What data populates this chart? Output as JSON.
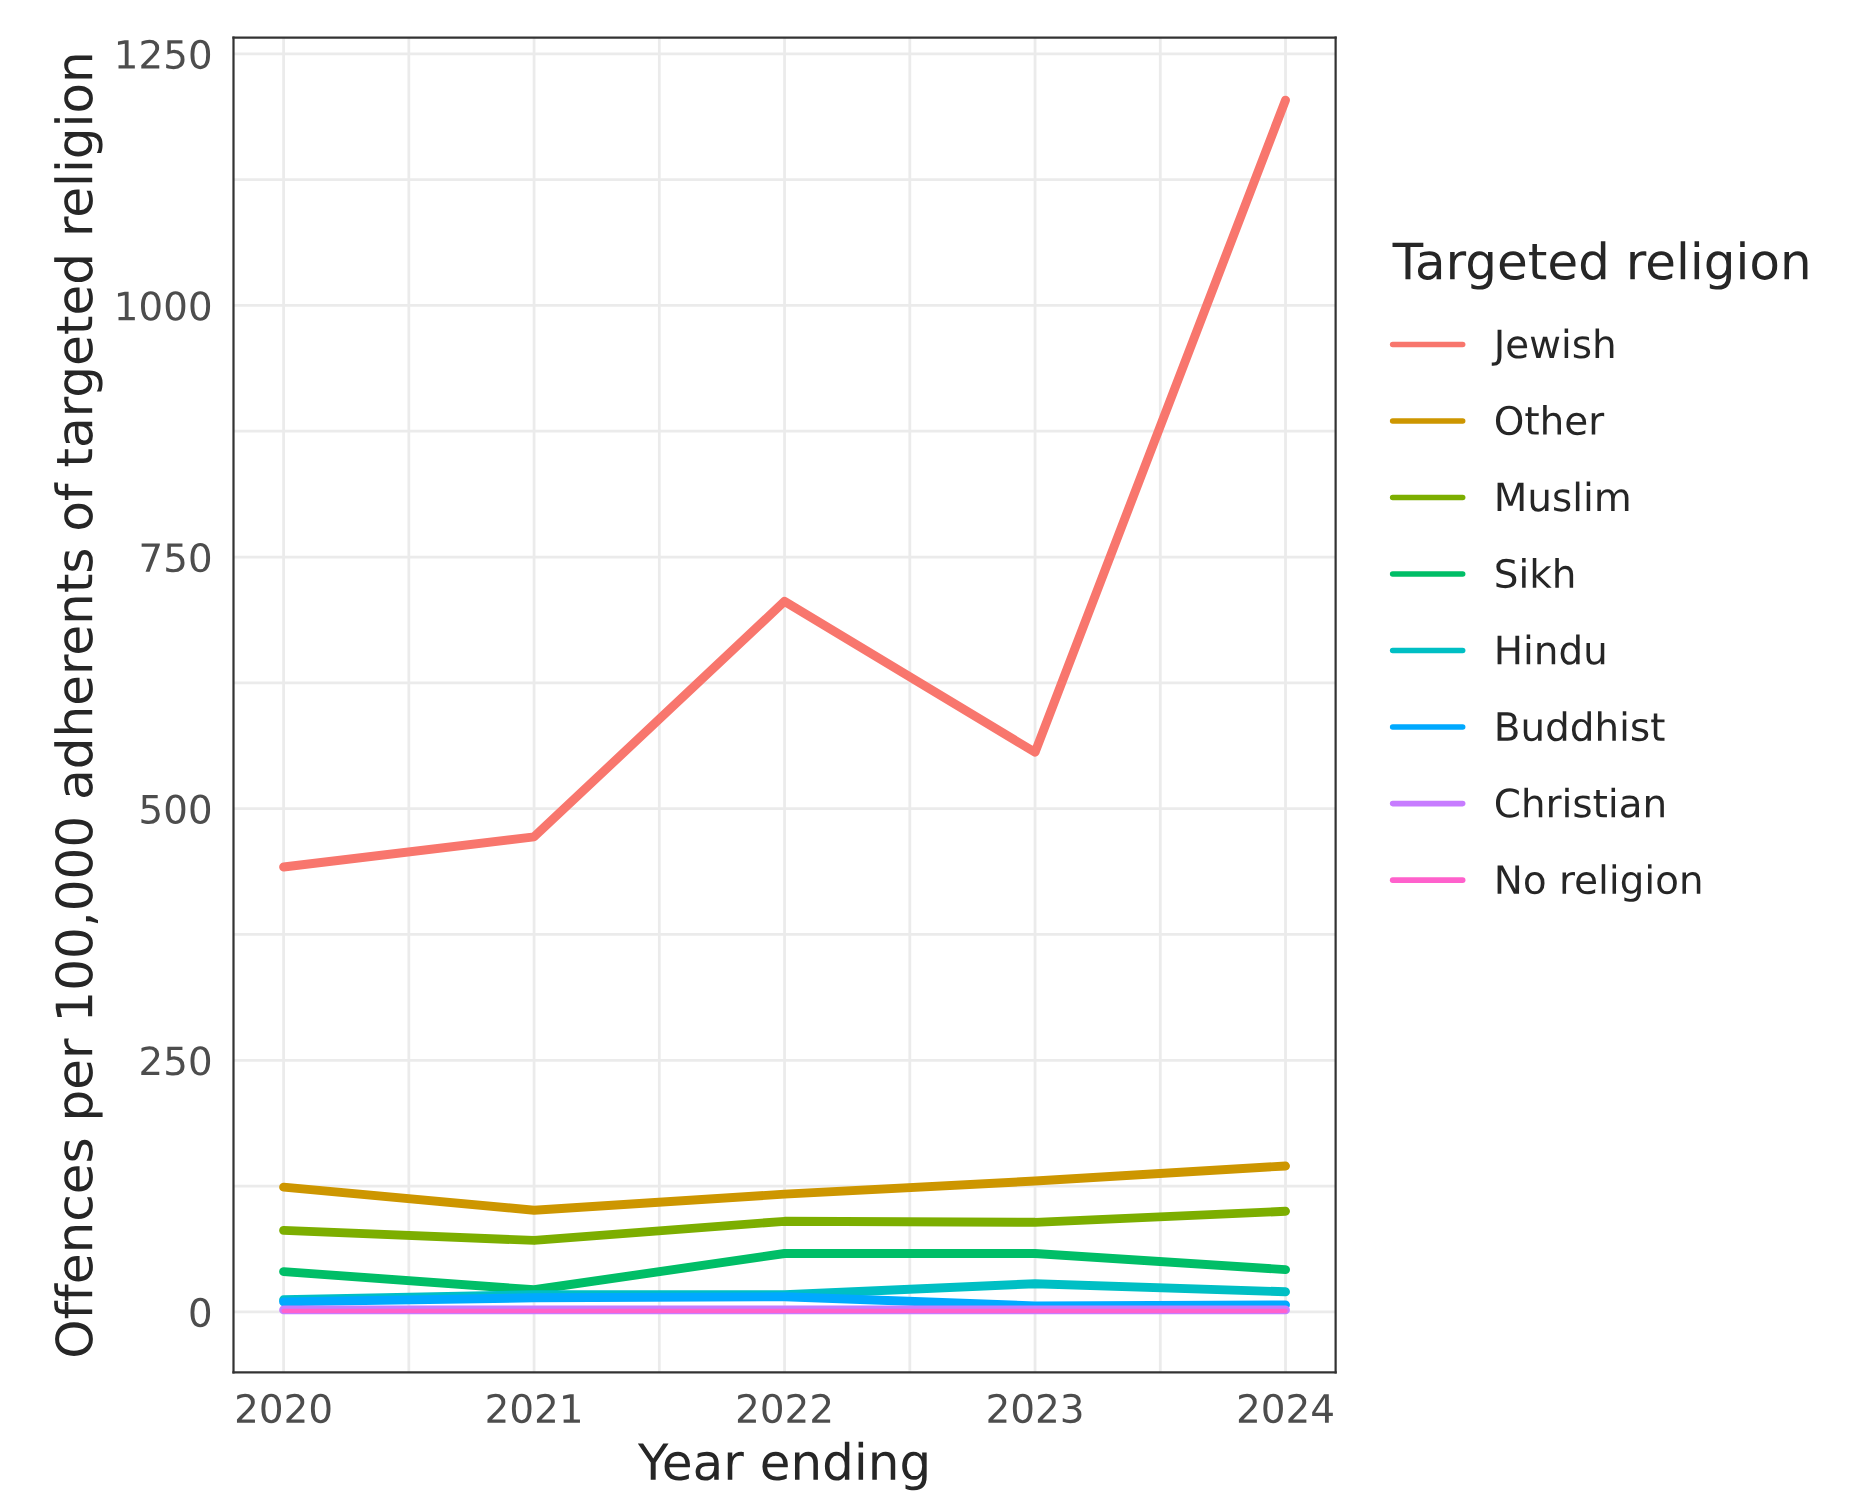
{
  "chart_data": {
    "type": "line",
    "xlabel": "Year ending",
    "ylabel": "Offences per 100,000 adherents of targeted religion",
    "legend_title": "Targeted religion",
    "legend": "right",
    "grid": true,
    "x": [
      2020,
      2021,
      2022,
      2023,
      2024
    ],
    "xlim": [
      2019.8,
      2024.2
    ],
    "xticks": [
      2020,
      2021,
      2022,
      2023,
      2024
    ],
    "ylim": [
      -60,
      1266
    ],
    "yticks": [
      0,
      250,
      500,
      750,
      1000,
      1250
    ],
    "series": [
      {
        "name": "Jewish",
        "color": "#f8766d",
        "values": [
          442,
          472,
          706,
          556,
          1204
        ]
      },
      {
        "name": "Other",
        "color": "#cd9600",
        "values": [
          124,
          101,
          117,
          130,
          145
        ]
      },
      {
        "name": "Muslim",
        "color": "#7cae00",
        "values": [
          81,
          71,
          90,
          89,
          100
        ]
      },
      {
        "name": "Sikh",
        "color": "#00be67",
        "values": [
          40,
          22,
          58,
          58,
          42
        ]
      },
      {
        "name": "Hindu",
        "color": "#00bfc4",
        "values": [
          12,
          17,
          17,
          28,
          20
        ]
      },
      {
        "name": "Buddhist",
        "color": "#00a9ff",
        "values": [
          10,
          14,
          15,
          6,
          7
        ]
      },
      {
        "name": "Christian",
        "color": "#c77cff",
        "values": [
          2,
          2,
          2,
          2,
          2
        ]
      },
      {
        "name": "No religion",
        "color": "#ff61cc",
        "values": [
          1,
          1,
          1,
          1,
          1
        ]
      }
    ]
  }
}
